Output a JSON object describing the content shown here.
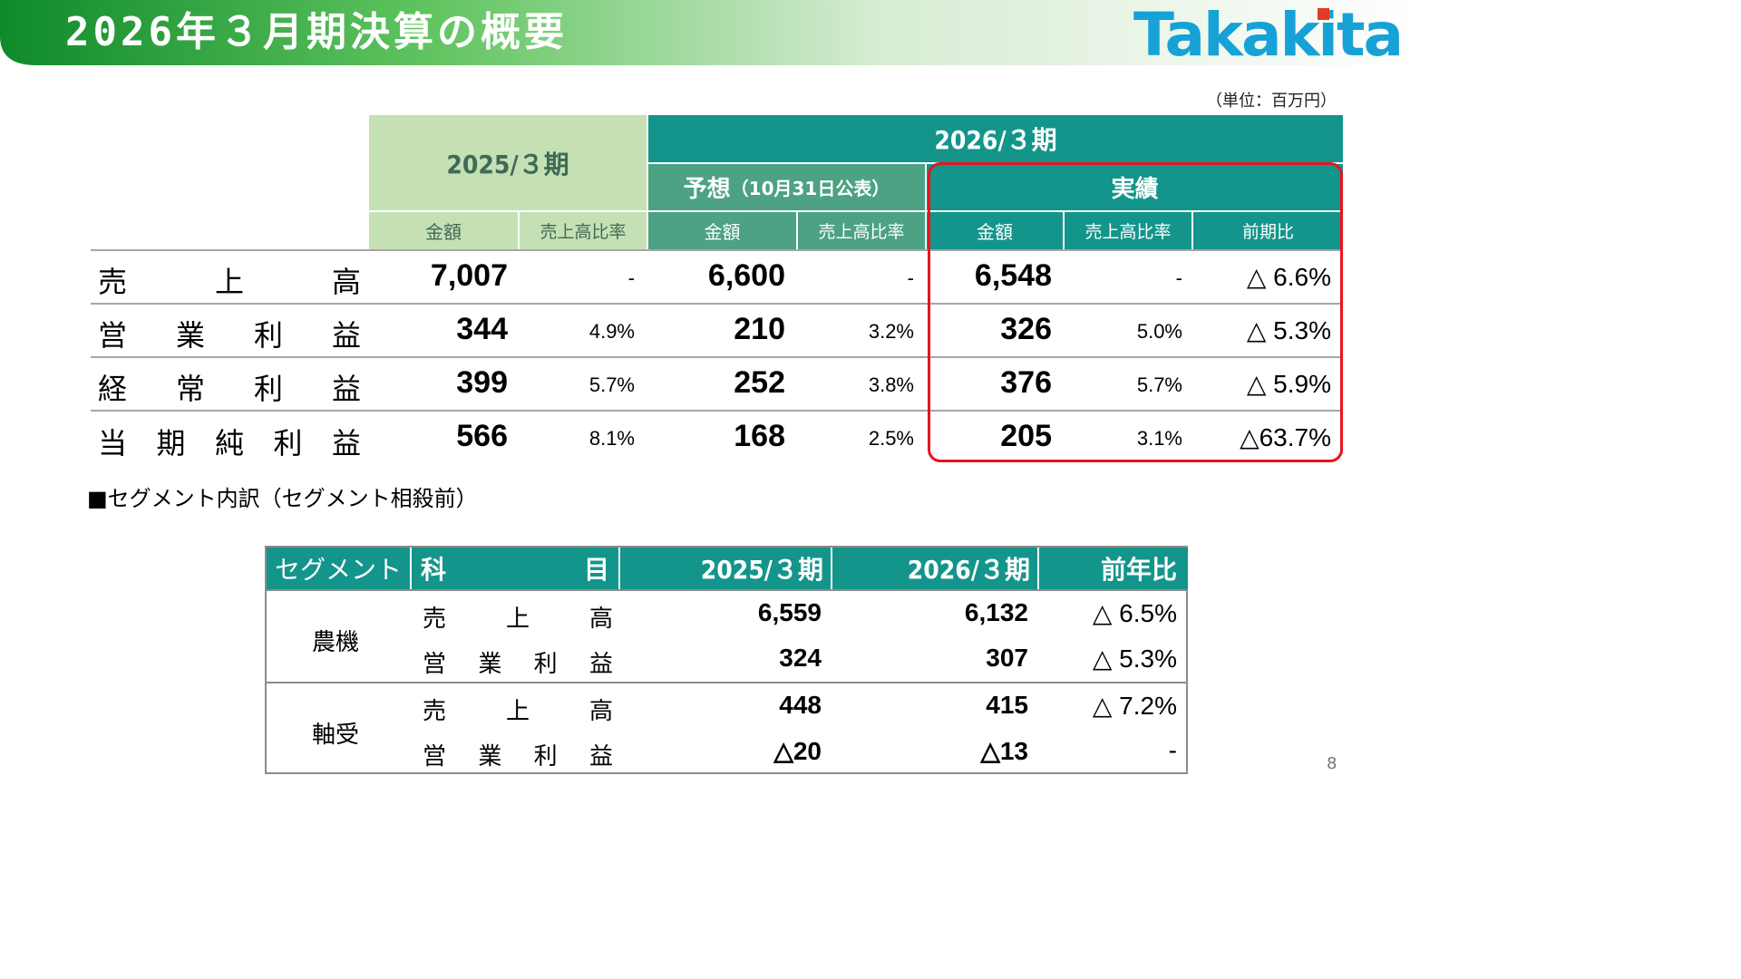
{
  "title": "2026年３月期決算の概要",
  "logo": "Takakita",
  "unit": "（単位：百万円）",
  "header": {
    "fy2025": "2025/３期",
    "fy2026": "2026/３期",
    "forecast_label": "予想",
    "forecast_note": "（10月31日公表）",
    "actual_label": "実績",
    "amount": "金額",
    "ratio": "売上高比率",
    "yoy": "前期比"
  },
  "rows": [
    {
      "label": [
        "売",
        "上",
        "高"
      ],
      "fy2025_amount": "7,007",
      "fy2025_ratio": "-",
      "forecast_amount": "6,600",
      "forecast_ratio": "-",
      "actual_amount": "6,548",
      "actual_ratio": "-",
      "yoy": "△ 6.6%"
    },
    {
      "label": [
        "営",
        "業",
        "利",
        "益"
      ],
      "fy2025_amount": "344",
      "fy2025_ratio": "4.9%",
      "forecast_amount": "210",
      "forecast_ratio": "3.2%",
      "actual_amount": "326",
      "actual_ratio": "5.0%",
      "yoy": "△ 5.3%"
    },
    {
      "label": [
        "経",
        "常",
        "利",
        "益"
      ],
      "fy2025_amount": "399",
      "fy2025_ratio": "5.7%",
      "forecast_amount": "252",
      "forecast_ratio": "3.8%",
      "actual_amount": "376",
      "actual_ratio": "5.7%",
      "yoy": "△ 5.9%"
    },
    {
      "label": [
        "当",
        "期",
        "純",
        "利",
        "益"
      ],
      "fy2025_amount": "566",
      "fy2025_ratio": "8.1%",
      "forecast_amount": "168",
      "forecast_ratio": "2.5%",
      "actual_amount": "205",
      "actual_ratio": "3.1%",
      "yoy": "△63.7%"
    }
  ],
  "segment_caption": "■セグメント内訳（セグメント相殺前）",
  "segment_table": {
    "headers": {
      "segment": "セグメント",
      "item_a": "科",
      "item_b": "目",
      "fy2025": "2025/３期",
      "fy2026": "2026/３期",
      "yoy": "前年比"
    },
    "groups": [
      {
        "name": "農機",
        "rows": [
          {
            "label": [
              "売",
              "上",
              "高"
            ],
            "fy2025": "6,559",
            "fy2026": "6,132",
            "yoy": "△ 6.5%"
          },
          {
            "label": [
              "営",
              "業",
              "利",
              "益"
            ],
            "fy2025": "324",
            "fy2026": "307",
            "yoy": "△ 5.3%"
          }
        ]
      },
      {
        "name": "軸受",
        "rows": [
          {
            "label": [
              "売",
              "上",
              "高"
            ],
            "fy2025": "448",
            "fy2026": "415",
            "yoy": "△ 7.2%"
          },
          {
            "label": [
              "営",
              "業",
              "利",
              "益"
            ],
            "fy2025": "△20",
            "fy2026": "△13",
            "yoy": "-"
          }
        ]
      }
    ]
  },
  "page_number": "8",
  "colors": {
    "title_green": "#1a8a2e",
    "teal": "#13958b",
    "forecast_green": "#4ca282",
    "prior_green": "#c5e0b4",
    "highlight_red": "#e8141d",
    "logo_blue": "#16a2d6"
  }
}
